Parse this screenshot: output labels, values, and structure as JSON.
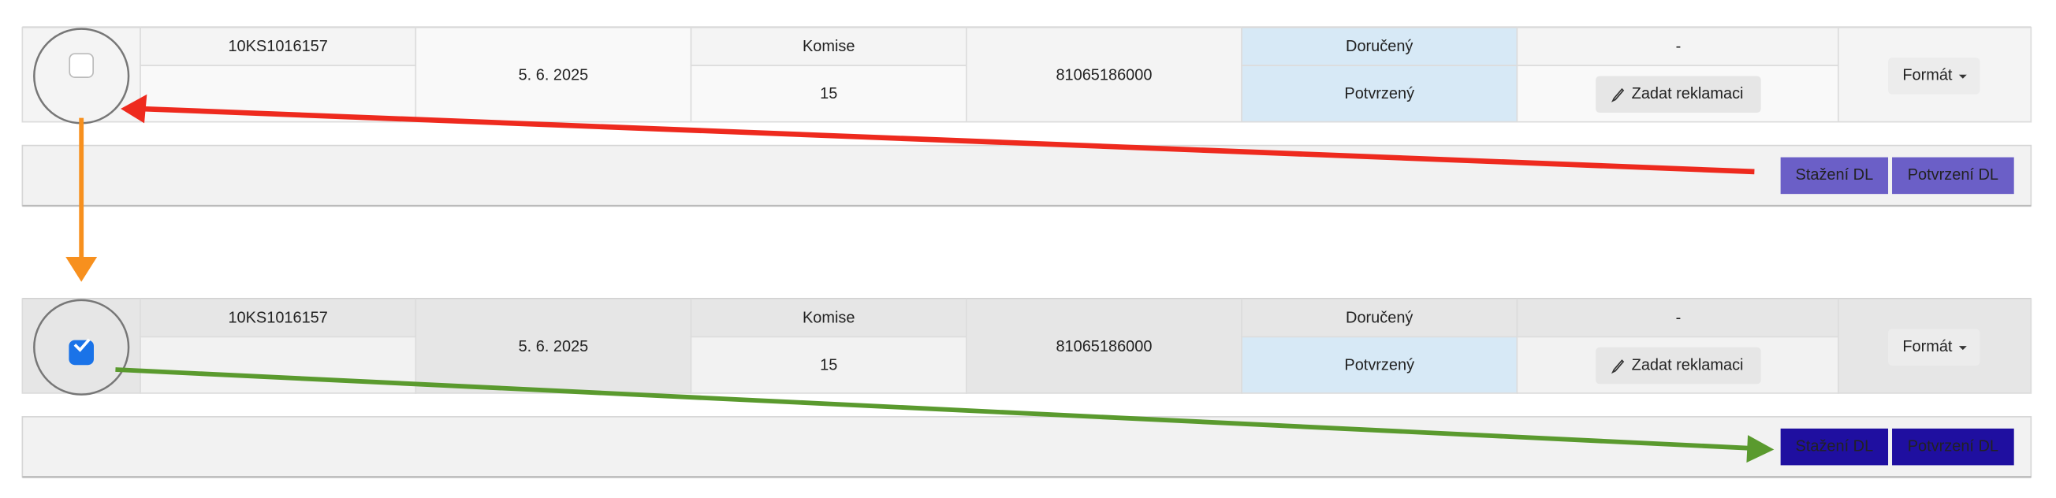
{
  "rows": [
    {
      "order": "10KS1016157",
      "date": "5. 6. 2025",
      "type": "Komise",
      "quantity": "15",
      "number": "81065186000",
      "status_top": "Doručený",
      "status_bottom": "Potvrzený",
      "dash": "-",
      "complaint_button": "Zadat reklamaci",
      "format_button": "Formát",
      "checked": false,
      "buttons": [
        "Stažení DL",
        "Potvrzení DL"
      ]
    },
    {
      "order": "10KS1016157",
      "date": "5. 6. 2025",
      "type": "Komise",
      "quantity": "15",
      "number": "81065186000",
      "status_top": "Doručený",
      "status_bottom": "Potvrzený",
      "dash": "-",
      "complaint_button": "Zadat reklamaci",
      "format_button": "Formát",
      "checked": true,
      "buttons": [
        "Stažení DL",
        "Potvrzení DL"
      ]
    }
  ]
}
